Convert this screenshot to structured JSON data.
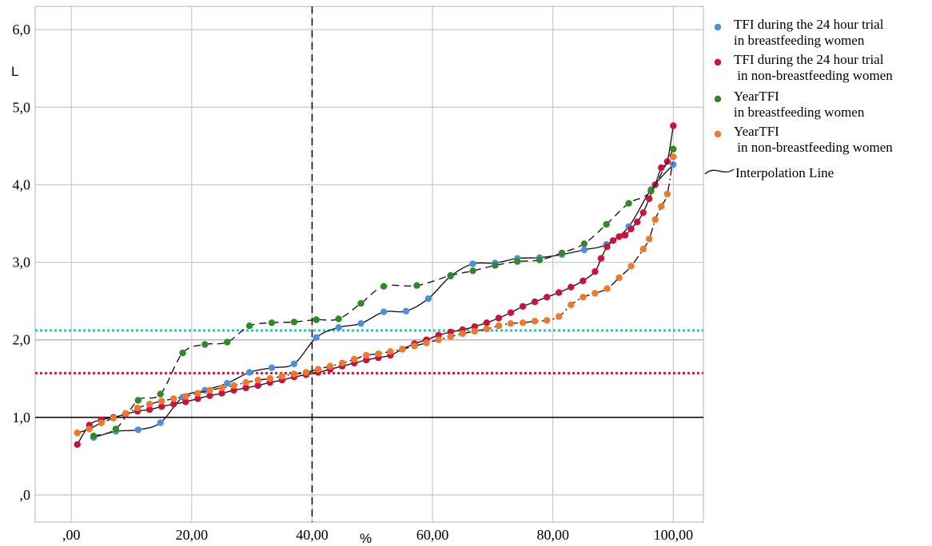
{
  "chart_data": {
    "type": "scatter",
    "xlabel": "%",
    "ylabel": "L",
    "xlim": [
      -6,
      105
    ],
    "ylim": [
      -0.35,
      6.3
    ],
    "x_ticks": [
      0,
      20,
      40,
      60,
      80,
      100
    ],
    "x_tick_labels": [
      ",00",
      "20,00",
      "40,00",
      "60,00",
      "80,00",
      "100,00"
    ],
    "y_ticks": [
      0,
      1,
      2,
      3,
      4,
      5,
      6
    ],
    "y_tick_labels": [
      ",0",
      "1,0",
      "2,0",
      "3,0",
      "4,0",
      "5,0",
      "6,0"
    ],
    "grid": true,
    "legend_position": "top-right",
    "reference_lines": [
      {
        "orientation": "horizontal",
        "value": 1.0,
        "color": "#000000",
        "style": "solid"
      },
      {
        "orientation": "horizontal",
        "value": 2.0,
        "color": "#b4b4dc",
        "style": "solid"
      },
      {
        "orientation": "horizontal",
        "value": 2.12,
        "color": "#19c8c8",
        "style": "dotted"
      },
      {
        "orientation": "horizontal",
        "value": 1.57,
        "color": "#dc1e4b",
        "style": "dotted"
      },
      {
        "orientation": "vertical",
        "value": 40,
        "color": "#000000",
        "style": "dashed"
      }
    ],
    "series": [
      {
        "name": "TFI during the 24 hour trial\nin breastfeeding women",
        "color": "#4a90e2",
        "line": "solid",
        "points": [
          [
            3.7,
            0.74
          ],
          [
            7.4,
            0.82
          ],
          [
            11.1,
            0.84
          ],
          [
            14.8,
            0.93
          ],
          [
            18.5,
            1.26
          ],
          [
            22.2,
            1.35
          ],
          [
            25.9,
            1.44
          ],
          [
            29.6,
            1.58
          ],
          [
            33.3,
            1.64
          ],
          [
            37,
            1.69
          ],
          [
            40.7,
            2.03
          ],
          [
            44.4,
            2.16
          ],
          [
            48.1,
            2.21
          ],
          [
            51.9,
            2.36
          ],
          [
            55.6,
            2.37
          ],
          [
            59.3,
            2.53
          ],
          [
            63,
            2.82
          ],
          [
            66.7,
            2.98
          ],
          [
            70.4,
            2.99
          ],
          [
            74.1,
            3.05
          ],
          [
            77.8,
            3.06
          ],
          [
            81.5,
            3.1
          ],
          [
            85.2,
            3.16
          ],
          [
            88.9,
            3.23
          ],
          [
            92.6,
            3.46
          ],
          [
            96.3,
            3.94
          ],
          [
            100,
            4.26
          ]
        ]
      },
      {
        "name": "TFI during the 24 hour trial\n in non-breastfeeding women",
        "color": "#d0103a",
        "line": "solid",
        "points": [
          [
            1,
            0.65
          ],
          [
            3,
            0.9
          ],
          [
            5,
            0.97
          ],
          [
            7,
            1.0
          ],
          [
            9,
            1.04
          ],
          [
            11,
            1.08
          ],
          [
            13,
            1.1
          ],
          [
            15,
            1.14
          ],
          [
            17,
            1.17
          ],
          [
            19,
            1.2
          ],
          [
            21,
            1.24
          ],
          [
            23,
            1.28
          ],
          [
            25,
            1.31
          ],
          [
            27,
            1.35
          ],
          [
            29,
            1.38
          ],
          [
            31,
            1.41
          ],
          [
            33,
            1.45
          ],
          [
            35,
            1.48
          ],
          [
            37,
            1.52
          ],
          [
            39,
            1.55
          ],
          [
            41,
            1.58
          ],
          [
            43,
            1.62
          ],
          [
            45,
            1.66
          ],
          [
            47,
            1.7
          ],
          [
            49,
            1.74
          ],
          [
            51,
            1.77
          ],
          [
            53,
            1.8
          ],
          [
            55,
            1.88
          ],
          [
            57,
            1.95
          ],
          [
            59,
            2.0
          ],
          [
            61,
            2.06
          ],
          [
            63,
            2.1
          ],
          [
            65,
            2.13
          ],
          [
            67,
            2.17
          ],
          [
            69,
            2.22
          ],
          [
            71,
            2.28
          ],
          [
            73,
            2.35
          ],
          [
            75,
            2.43
          ],
          [
            77,
            2.49
          ],
          [
            79,
            2.55
          ],
          [
            81,
            2.61
          ],
          [
            83,
            2.68
          ],
          [
            85,
            2.76
          ],
          [
            87,
            2.88
          ],
          [
            88,
            3.05
          ],
          [
            89,
            3.2
          ],
          [
            90,
            3.28
          ],
          [
            91,
            3.33
          ],
          [
            92,
            3.35
          ],
          [
            93,
            3.43
          ],
          [
            94,
            3.52
          ],
          [
            95,
            3.64
          ],
          [
            96,
            3.82
          ],
          [
            97,
            4.0
          ],
          [
            98,
            4.22
          ],
          [
            99,
            4.3
          ],
          [
            100,
            4.76
          ]
        ]
      },
      {
        "name": "YearTFI\nin breastfeeding women",
        "color": "#2e8b24",
        "line": "dashed",
        "points": [
          [
            3.7,
            0.76
          ],
          [
            7.4,
            0.85
          ],
          [
            11.1,
            1.22
          ],
          [
            14.8,
            1.3
          ],
          [
            18.5,
            1.83
          ],
          [
            22.2,
            1.94
          ],
          [
            25.9,
            1.97
          ],
          [
            29.6,
            2.18
          ],
          [
            33.3,
            2.22
          ],
          [
            37,
            2.23
          ],
          [
            40.7,
            2.26
          ],
          [
            44.4,
            2.27
          ],
          [
            48.1,
            2.47
          ],
          [
            51.9,
            2.69
          ],
          [
            57.4,
            2.7
          ],
          [
            63,
            2.83
          ],
          [
            66.7,
            2.89
          ],
          [
            70.4,
            2.96
          ],
          [
            74.1,
            3.01
          ],
          [
            77.8,
            3.03
          ],
          [
            81.5,
            3.12
          ],
          [
            85.2,
            3.24
          ],
          [
            88.9,
            3.49
          ],
          [
            92.6,
            3.76
          ],
          [
            96.3,
            3.92
          ],
          [
            100,
            4.46
          ]
        ]
      },
      {
        "name": "YearTFI\n in non-breastfeeding women",
        "color": "#f07828",
        "line": "dashdot",
        "points": [
          [
            1,
            0.8
          ],
          [
            3,
            0.85
          ],
          [
            5,
            0.93
          ],
          [
            7,
            0.99
          ],
          [
            9,
            1.05
          ],
          [
            11,
            1.12
          ],
          [
            13,
            1.17
          ],
          [
            15,
            1.21
          ],
          [
            17,
            1.24
          ],
          [
            19,
            1.27
          ],
          [
            21,
            1.31
          ],
          [
            23,
            1.35
          ],
          [
            25,
            1.38
          ],
          [
            27,
            1.41
          ],
          [
            29,
            1.45
          ],
          [
            31,
            1.48
          ],
          [
            33,
            1.5
          ],
          [
            35,
            1.53
          ],
          [
            37,
            1.56
          ],
          [
            39,
            1.58
          ],
          [
            41,
            1.62
          ],
          [
            43,
            1.66
          ],
          [
            45,
            1.7
          ],
          [
            47,
            1.75
          ],
          [
            49,
            1.8
          ],
          [
            51,
            1.82
          ],
          [
            53,
            1.85
          ],
          [
            55,
            1.88
          ],
          [
            57,
            1.92
          ],
          [
            59,
            1.96
          ],
          [
            61,
            2.0
          ],
          [
            63,
            2.04
          ],
          [
            65,
            2.08
          ],
          [
            67,
            2.11
          ],
          [
            69,
            2.14
          ],
          [
            71,
            2.18
          ],
          [
            73,
            2.21
          ],
          [
            75,
            2.22
          ],
          [
            77,
            2.24
          ],
          [
            79,
            2.25
          ],
          [
            81,
            2.3
          ],
          [
            83,
            2.45
          ],
          [
            85,
            2.55
          ],
          [
            87,
            2.6
          ],
          [
            89,
            2.66
          ],
          [
            91,
            2.8
          ],
          [
            93,
            2.95
          ],
          [
            95,
            3.17
          ],
          [
            96,
            3.3
          ],
          [
            97,
            3.55
          ],
          [
            98,
            3.72
          ],
          [
            99,
            3.88
          ],
          [
            100,
            4.36
          ]
        ]
      }
    ],
    "interpolation_legend": "Interpolation Line"
  }
}
